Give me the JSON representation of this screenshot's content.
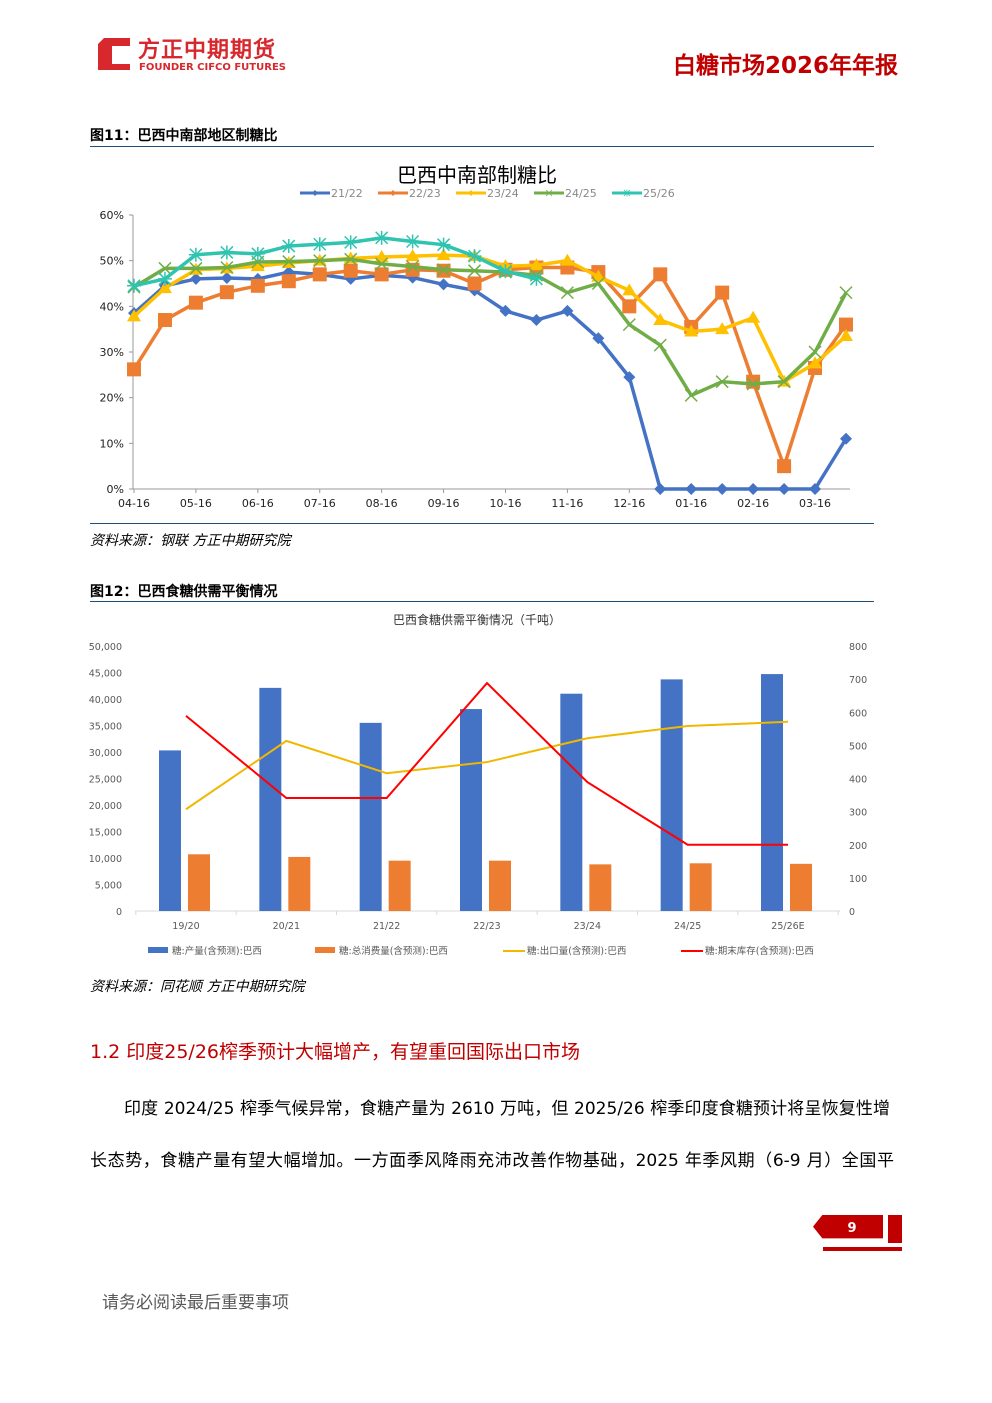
{
  "header": {
    "logo_cn": "方正中期期货",
    "logo_en": "FOUNDER CIFCO FUTURES",
    "report_title": "白糖市场2026年年报",
    "brand_color": "#d7282d"
  },
  "figure11": {
    "caption": "图11：巴西中南部地区制糖比",
    "source": "资料来源：钢联  方正中期研究院"
  },
  "figure12": {
    "caption": "图12：巴西食糖供需平衡情况",
    "source": "资料来源：同花顺  方正中期研究院"
  },
  "chart_data": [
    {
      "type": "line",
      "title": "巴西中南部制糖比",
      "legend_position": "top",
      "y_unit": "%",
      "ylim": [
        0,
        60
      ],
      "yticks": [
        "0%",
        "10%",
        "20%",
        "30%",
        "40%",
        "50%",
        "60%"
      ],
      "ytick_values": [
        0,
        10,
        20,
        30,
        40,
        50,
        60
      ],
      "x_tick_labels": [
        "04-16",
        "05-16",
        "06-16",
        "07-16",
        "08-16",
        "09-16",
        "10-16",
        "11-16",
        "12-16",
        "01-16",
        "02-16",
        "03-16"
      ],
      "x_tick_positions": [
        0,
        2,
        4,
        6,
        8,
        10,
        12,
        14,
        16,
        18,
        20,
        22
      ],
      "grid": false,
      "series": [
        {
          "name": "21/22",
          "color": "#4472c4",
          "marker": "diamond",
          "values": [
            38.5,
            44.5,
            46,
            46.2,
            46,
            47.5,
            47,
            46,
            46.8,
            46.3,
            44.8,
            43.5,
            39,
            37,
            39,
            33,
            24.5,
            0,
            0,
            0,
            0,
            0,
            0,
            11
          ]
        },
        {
          "name": "22/23",
          "color": "#ed7d31",
          "marker": "square",
          "values": [
            26.2,
            37,
            40.8,
            43.1,
            44.5,
            45.5,
            47,
            47.8,
            47,
            48,
            47.8,
            45,
            48,
            48.5,
            48.5,
            47.5,
            40,
            47,
            35.5,
            43,
            23.5,
            5,
            26.5,
            36
          ]
        },
        {
          "name": "23/24",
          "color": "#ffc000",
          "marker": "triangle",
          "values": [
            37.8,
            44,
            48,
            48.3,
            48.8,
            49.5,
            50,
            50.5,
            50.8,
            51,
            51.2,
            51,
            48.8,
            49,
            50,
            46.5,
            43.5,
            37,
            34.5,
            35,
            37.5,
            23.5,
            27.5,
            33.5
          ]
        },
        {
          "name": "24/25",
          "color": "#70ad47",
          "marker": "x",
          "values": [
            44.2,
            48.3,
            48.3,
            48.5,
            49.7,
            49.8,
            50,
            50.3,
            49.3,
            48.7,
            48,
            47.8,
            47.5,
            46.8,
            43,
            45,
            36,
            31.5,
            20.5,
            23.5,
            23,
            23.5,
            30,
            43
          ]
        },
        {
          "name": "25/26",
          "color": "#2ec4b0",
          "marker": "asterisk",
          "values": [
            44.5,
            46,
            51.3,
            51.8,
            51.5,
            53.2,
            53.6,
            54,
            55,
            54.2,
            53.5,
            51,
            47.7,
            46
          ]
        }
      ]
    },
    {
      "type": "bar+line",
      "title": "巴西食糖供需平衡情况（千吨）",
      "legend_position": "bottom",
      "categories": [
        "19/20",
        "20/21",
        "21/22",
        "22/23",
        "23/24",
        "24/25",
        "25/26E"
      ],
      "ylim_left": [
        0,
        50000
      ],
      "yticks_left": [
        "0",
        "5,000",
        "10,000",
        "15,000",
        "20,000",
        "25,000",
        "30,000",
        "35,000",
        "40,000",
        "45,000",
        "50,000"
      ],
      "ylim_right": [
        0,
        800
      ],
      "yticks_right": [
        "0",
        "100",
        "200",
        "300",
        "400",
        "500",
        "600",
        "700",
        "800"
      ],
      "series": [
        {
          "name": "糖:产量(含预测):巴西",
          "kind": "bar",
          "axis": "left",
          "color": "#4472c4",
          "values": [
            30300,
            42100,
            35500,
            38100,
            41000,
            43700,
            44700
          ]
        },
        {
          "name": "糖:总消费量(含预测):巴西",
          "kind": "bar",
          "axis": "left",
          "color": "#ed7d31",
          "values": [
            10700,
            10200,
            9500,
            9500,
            8800,
            9000,
            8900
          ]
        },
        {
          "name": "糖:出口量(含预测):巴西",
          "kind": "line",
          "axis": "left",
          "color": "#f0b800",
          "values": [
            19200,
            32100,
            26000,
            28100,
            32600,
            34900,
            35700
          ]
        },
        {
          "name": "糖:期末库存(含预测):巴西",
          "kind": "line",
          "axis": "right",
          "color": "#ff0000",
          "values": [
            589,
            341,
            341,
            688,
            389,
            200,
            200
          ]
        }
      ]
    }
  ],
  "section": {
    "heading": "1.2  印度25/26榨季预计大幅增产，有望重回国际出口市场",
    "paragraph_lines": [
      "印度 2024/25 榨季气候异常，食糖产量为 2610 万吨，但 2025/26 榨季印度食糖预计将呈恢复性增",
      "长态势，食糖产量有望大幅增加。一方面季风降雨充沛改善作物基础，2025 年季风期（6-9 月）全国平"
    ]
  },
  "footer": {
    "page_number": "9",
    "notice": "请务必阅读最后重要事项"
  }
}
